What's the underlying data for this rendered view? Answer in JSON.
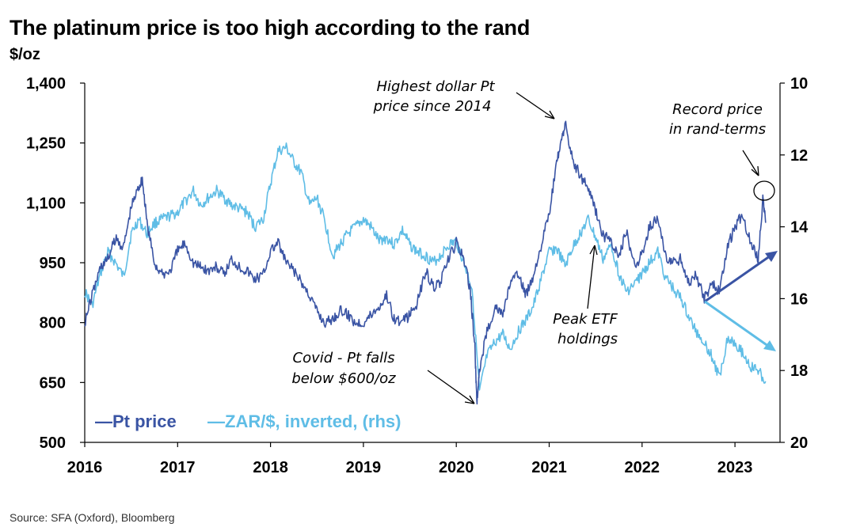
{
  "title": "The platinum price is too high according to the rand",
  "unit": "$/oz",
  "source": "Source: SFA (Oxford), Bloomberg",
  "chart_data": {
    "type": "line",
    "title": "The platinum price is too high according to the rand",
    "ylabel": "$/oz",
    "ylim": [
      500,
      1400
    ],
    "y_ticks": [
      "1,400",
      "1,250",
      "1,100",
      "950",
      "800",
      "650",
      "500"
    ],
    "y_tick_values": [
      1400,
      1250,
      1100,
      950,
      800,
      650,
      500
    ],
    "y2lim": [
      10,
      20
    ],
    "y2_inverted": true,
    "y2_ticks": [
      "10",
      "12",
      "14",
      "16",
      "18",
      "20"
    ],
    "y2_tick_values": [
      10,
      12,
      14,
      16,
      18,
      20
    ],
    "x_ticks": [
      "2016",
      "2017",
      "2018",
      "2019",
      "2020",
      "2021",
      "2022",
      "2023"
    ],
    "x_tick_values": [
      2016,
      2017,
      2018,
      2019,
      2020,
      2021,
      2022,
      2023
    ],
    "xlim": [
      2016,
      2023.7
    ],
    "legend_placement": "bottom-left",
    "series": [
      {
        "name": "Pt price",
        "axis": "left",
        "color": "#3a54a4",
        "x": [
          2016.0,
          2016.08,
          2016.17,
          2016.25,
          2016.33,
          2016.42,
          2016.5,
          2016.58,
          2016.62,
          2016.67,
          2016.75,
          2016.83,
          2016.92,
          2017.0,
          2017.08,
          2017.17,
          2017.25,
          2017.33,
          2017.42,
          2017.5,
          2017.58,
          2017.67,
          2017.75,
          2017.83,
          2017.92,
          2018.0,
          2018.08,
          2018.17,
          2018.25,
          2018.33,
          2018.42,
          2018.5,
          2018.58,
          2018.67,
          2018.75,
          2018.83,
          2018.92,
          2019.0,
          2019.08,
          2019.17,
          2019.25,
          2019.33,
          2019.42,
          2019.5,
          2019.58,
          2019.67,
          2019.75,
          2019.83,
          2019.92,
          2020.0,
          2020.08,
          2020.15,
          2020.2,
          2020.22,
          2020.25,
          2020.33,
          2020.42,
          2020.5,
          2020.58,
          2020.67,
          2020.75,
          2020.83,
          2020.92,
          2021.0,
          2021.08,
          2021.13,
          2021.17,
          2021.25,
          2021.33,
          2021.42,
          2021.5,
          2021.58,
          2021.67,
          2021.75,
          2021.83,
          2021.92,
          2022.0,
          2022.08,
          2022.17,
          2022.25,
          2022.33,
          2022.42,
          2022.5,
          2022.58,
          2022.67,
          2022.75,
          2022.83,
          2022.92,
          2023.0,
          2023.08,
          2023.17,
          2023.25,
          2023.3,
          2023.33
        ],
        "values": [
          800,
          870,
          940,
          960,
          1010,
          990,
          1090,
          1140,
          1160,
          1050,
          950,
          920,
          930,
          980,
          1000,
          950,
          940,
          930,
          940,
          920,
          960,
          940,
          930,
          910,
          920,
          980,
          1000,
          950,
          930,
          900,
          870,
          830,
          800,
          810,
          830,
          820,
          800,
          800,
          820,
          840,
          870,
          810,
          800,
          820,
          850,
          930,
          890,
          900,
          960,
          1000,
          960,
          880,
          740,
          600,
          680,
          780,
          840,
          820,
          900,
          920,
          870,
          920,
          1000,
          1070,
          1200,
          1250,
          1300,
          1210,
          1170,
          1140,
          1080,
          1020,
          1000,
          960,
          1030,
          940,
          970,
          1040,
          1060,
          970,
          950,
          960,
          900,
          920,
          860,
          900,
          880,
          990,
          1040,
          1070,
          1000,
          960,
          1110,
          1050
        ]
      },
      {
        "name": "ZAR/$, inverted, (rhs)",
        "axis": "right",
        "color": "#5fbde6",
        "x": [
          2016.0,
          2016.08,
          2016.17,
          2016.25,
          2016.33,
          2016.42,
          2016.5,
          2016.58,
          2016.67,
          2016.75,
          2016.83,
          2016.92,
          2017.0,
          2017.08,
          2017.17,
          2017.25,
          2017.33,
          2017.42,
          2017.5,
          2017.58,
          2017.67,
          2017.75,
          2017.83,
          2017.92,
          2018.0,
          2018.08,
          2018.17,
          2018.25,
          2018.33,
          2018.42,
          2018.5,
          2018.58,
          2018.67,
          2018.75,
          2018.83,
          2018.92,
          2019.0,
          2019.08,
          2019.17,
          2019.25,
          2019.33,
          2019.42,
          2019.5,
          2019.58,
          2019.67,
          2019.75,
          2019.83,
          2019.92,
          2020.0,
          2020.08,
          2020.17,
          2020.25,
          2020.33,
          2020.42,
          2020.5,
          2020.58,
          2020.67,
          2020.75,
          2020.83,
          2020.92,
          2021.0,
          2021.08,
          2021.17,
          2021.25,
          2021.33,
          2021.42,
          2021.5,
          2021.58,
          2021.67,
          2021.75,
          2021.83,
          2021.92,
          2022.0,
          2022.08,
          2022.17,
          2022.25,
          2022.33,
          2022.42,
          2022.5,
          2022.58,
          2022.67,
          2022.75,
          2022.83,
          2022.92,
          2023.0,
          2023.08,
          2023.17,
          2023.25,
          2023.33
        ],
        "values": [
          15.8,
          16.2,
          15.3,
          14.7,
          15.0,
          15.4,
          14.2,
          13.8,
          14.2,
          13.9,
          13.8,
          13.7,
          13.6,
          13.3,
          13.0,
          13.4,
          13.2,
          13.0,
          13.2,
          13.4,
          13.5,
          13.6,
          14.0,
          13.8,
          12.8,
          11.9,
          11.8,
          12.2,
          12.5,
          13.4,
          13.2,
          13.8,
          14.8,
          14.5,
          14.2,
          14.0,
          13.8,
          14.0,
          14.4,
          14.3,
          14.5,
          14.1,
          14.5,
          14.7,
          14.8,
          15.0,
          14.8,
          14.5,
          14.4,
          15.0,
          15.7,
          18.6,
          17.6,
          17.2,
          17.0,
          17.4,
          16.9,
          16.6,
          16.2,
          15.4,
          14.7,
          14.6,
          15.1,
          14.6,
          14.2,
          13.8,
          14.3,
          14.9,
          14.5,
          15.3,
          15.8,
          15.6,
          15.3,
          15.0,
          14.7,
          15.4,
          15.7,
          16.0,
          16.5,
          16.9,
          17.2,
          17.6,
          18.2,
          17.1,
          17.2,
          17.5,
          17.9,
          18.0,
          18.3
        ]
      }
    ],
    "annotations": [
      "Highest dollar Pt price since 2014",
      "Record price in rand-terms",
      "Peak ETF holdings",
      "Covid - Pt falls below $600/oz"
    ]
  },
  "legend": {
    "pt": "—Pt price",
    "zar": "—ZAR/$, inverted, (rhs)"
  },
  "annotations": {
    "highest": [
      "Highest dollar Pt",
      "price since 2014"
    ],
    "record": [
      "Record price",
      "in rand-terms"
    ],
    "etf": [
      "Peak ETF",
      "holdings"
    ],
    "covid": [
      "Covid - Pt falls",
      "below $600/oz"
    ]
  }
}
